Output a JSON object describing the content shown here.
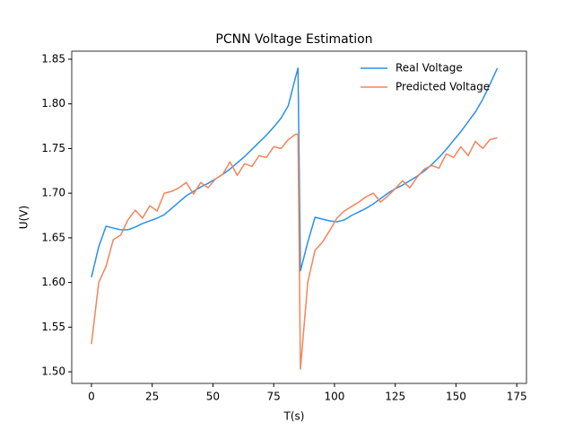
{
  "chart_data": {
    "type": "line",
    "title": "PCNN Voltage Estimation",
    "xlabel": "T(s)",
    "ylabel": "U(V)",
    "x": [
      0,
      3,
      6,
      9,
      12,
      15,
      18,
      21,
      24,
      27,
      30,
      33,
      36,
      39,
      42,
      45,
      48,
      51,
      54,
      57,
      60,
      63,
      66,
      69,
      72,
      75,
      78,
      81,
      84,
      85,
      86,
      89,
      92,
      95,
      98,
      101,
      104,
      107,
      110,
      113,
      116,
      119,
      122,
      125,
      128,
      131,
      134,
      137,
      140,
      143,
      146,
      149,
      152,
      155,
      158,
      161,
      164,
      167
    ],
    "series": [
      {
        "name": "Real Voltage",
        "color": "#2b90e8",
        "values": [
          1.606,
          1.64,
          1.663,
          1.661,
          1.659,
          1.659,
          1.662,
          1.666,
          1.669,
          1.672,
          1.676,
          1.683,
          1.69,
          1.697,
          1.702,
          1.707,
          1.711,
          1.716,
          1.721,
          1.727,
          1.734,
          1.741,
          1.749,
          1.757,
          1.765,
          1.774,
          1.784,
          1.798,
          1.83,
          1.84,
          1.613,
          1.645,
          1.673,
          1.671,
          1.669,
          1.668,
          1.67,
          1.675,
          1.679,
          1.683,
          1.688,
          1.694,
          1.7,
          1.705,
          1.709,
          1.714,
          1.719,
          1.725,
          1.732,
          1.74,
          1.749,
          1.759,
          1.769,
          1.78,
          1.791,
          1.805,
          1.822,
          1.84
        ]
      },
      {
        "name": "Predicted Voltage",
        "color": "#f4845a",
        "values": [
          1.531,
          1.6,
          1.618,
          1.648,
          1.653,
          1.67,
          1.681,
          1.672,
          1.686,
          1.68,
          1.7,
          1.702,
          1.706,
          1.712,
          1.699,
          1.712,
          1.706,
          1.716,
          1.721,
          1.735,
          1.72,
          1.733,
          1.73,
          1.742,
          1.74,
          1.752,
          1.75,
          1.76,
          1.766,
          1.766,
          1.503,
          1.6,
          1.636,
          1.645,
          1.658,
          1.672,
          1.68,
          1.685,
          1.69,
          1.696,
          1.7,
          1.69,
          1.697,
          1.705,
          1.714,
          1.706,
          1.718,
          1.727,
          1.731,
          1.728,
          1.744,
          1.74,
          1.752,
          1.742,
          1.758,
          1.75,
          1.76,
          1.762
        ]
      }
    ],
    "xlim": [
      -8.1,
      179
    ],
    "xticks": [
      0,
      25,
      50,
      75,
      100,
      125,
      150,
      175
    ],
    "ylim": [
      1.487,
      1.859
    ],
    "yticks": [
      {
        "value": 1.5,
        "label": "1.50"
      },
      1.55,
      {
        "value": 1.6,
        "label": "1.60"
      },
      1.65,
      {
        "value": 1.7,
        "label": "1.70"
      },
      1.75,
      {
        "value": 1.8,
        "label": "1.80"
      },
      1.85
    ],
    "legend": "upper right",
    "grid": false
  }
}
